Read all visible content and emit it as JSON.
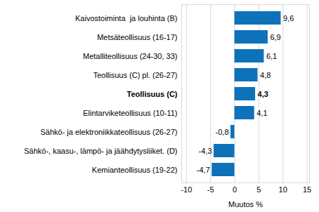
{
  "chart_data": {
    "type": "bar",
    "orientation": "horizontal",
    "categories": [
      "Kaivostoiminta  ja louhinta (B)",
      "Metsäteollisuus (16-17)",
      "Metalliteollisuus (24-30, 33)",
      "Teollisuus (C) pl. (26-27)",
      "Teollisuus (C)",
      "Elintarviketeollisuus (10-11)",
      "Sähkö- ja elektroniikkateollisuus (26-27)",
      "Sähkö-, kaasu-, lämpö- ja jäähdytysliiket. (D)",
      "Kemianteollisuus (19-22)"
    ],
    "values": [
      9.6,
      6.9,
      6.1,
      4.8,
      4.3,
      4.1,
      -0.8,
      -4.3,
      -4.7
    ],
    "value_labels": [
      "9,6",
      "6,9",
      "6,1",
      "4,8",
      "4,3",
      "4,1",
      "-0,8",
      "-4,3",
      "-4,7"
    ],
    "data_labels": true,
    "color": "#0d72b9",
    "x_label": "Muutos %",
    "xlim": [
      -11,
      15.5
    ],
    "xticks": [
      -10,
      -5,
      0,
      5,
      10,
      15
    ],
    "grid": true
  }
}
